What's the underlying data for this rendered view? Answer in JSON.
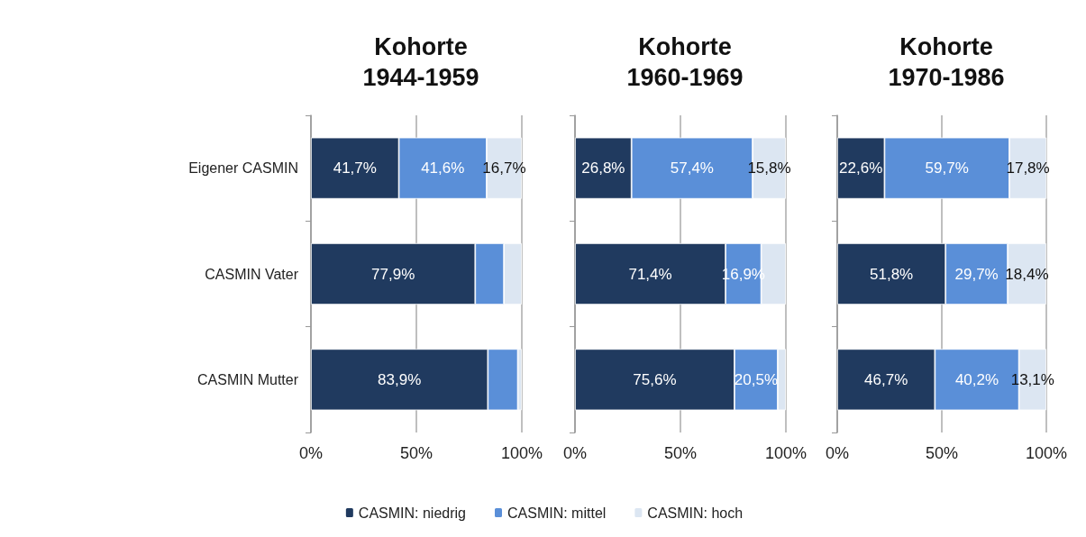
{
  "chart_data": [
    {
      "type": "bar",
      "orientation": "horizontal",
      "stacked": true,
      "title": "Kohorte\n1944-1959",
      "categories": [
        "Eigener CASMIN",
        "CASMIN Vater",
        "CASMIN Mutter"
      ],
      "xlim": [
        0,
        100
      ],
      "xticks": [
        {
          "value": 0,
          "label": "0%"
        },
        {
          "value": 50,
          "label": "50%"
        },
        {
          "value": 100,
          "label": "100%"
        }
      ],
      "grid": "x",
      "legend": false,
      "series": [
        {
          "color": "#203a5f",
          "values": [
            41.7,
            77.9,
            83.9
          ],
          "value_labels": [
            "41,7%",
            "77,9%",
            "83,9%"
          ]
        },
        {
          "color": "#5a8fd8",
          "values": [
            41.6,
            13.6,
            14.2
          ],
          "value_labels": [
            "41,6%",
            null,
            null
          ]
        },
        {
          "color": "#dce6f2",
          "values": [
            16.7,
            8.5,
            1.9
          ],
          "value_labels": [
            "16,7%",
            null,
            null
          ]
        }
      ]
    },
    {
      "type": "bar",
      "orientation": "horizontal",
      "stacked": true,
      "title": "Kohorte\n1960-1969",
      "categories": [
        null,
        null,
        null
      ],
      "tick_labels": "x",
      "xlim": [
        0,
        100
      ],
      "xticks": [
        {
          "value": 0,
          "label": "0%"
        },
        {
          "value": 50,
          "label": "50%"
        },
        {
          "value": 100,
          "label": "100%"
        }
      ],
      "grid": "x",
      "legend": "bottom",
      "series": [
        {
          "name": "CASMIN: niedrig",
          "color": "#203a5f",
          "values": [
            26.8,
            71.4,
            75.6
          ],
          "value_labels": [
            "26,8%",
            "71,4%",
            "75,6%"
          ]
        },
        {
          "name": "CASMIN: mittel",
          "color": "#5a8fd8",
          "values": [
            57.4,
            16.9,
            20.5
          ],
          "value_labels": [
            "57,4%",
            "16,9%",
            "20,5%"
          ]
        },
        {
          "name": "CASMIN: hoch",
          "color": "#dce6f2",
          "values": [
            15.8,
            11.7,
            3.9
          ],
          "value_labels": [
            "15,8%",
            null,
            null
          ]
        }
      ]
    },
    {
      "type": "bar",
      "orientation": "horizontal",
      "stacked": true,
      "title": "Kohorte\n1970-1986",
      "categories": [
        null,
        null,
        null
      ],
      "tick_labels": "x",
      "xlim": [
        0,
        100
      ],
      "xticks": [
        {
          "value": 0,
          "label": "0%"
        },
        {
          "value": 50,
          "label": "50%"
        },
        {
          "value": 100,
          "label": "100%"
        }
      ],
      "grid": "x",
      "legend": false,
      "series": [
        {
          "color": "#203a5f",
          "values": [
            22.6,
            51.8,
            46.7
          ],
          "value_labels": [
            "22,6%",
            "51,8%",
            "46,7%"
          ]
        },
        {
          "color": "#5a8fd8",
          "values": [
            59.7,
            29.7,
            40.2
          ],
          "value_labels": [
            "59,7%",
            "29,7%",
            "40,2%"
          ]
        },
        {
          "color": "#dce6f2",
          "values": [
            17.8,
            18.4,
            13.1
          ],
          "value_labels": [
            "17,8%",
            "18,4%",
            "13,1%"
          ]
        }
      ]
    }
  ]
}
